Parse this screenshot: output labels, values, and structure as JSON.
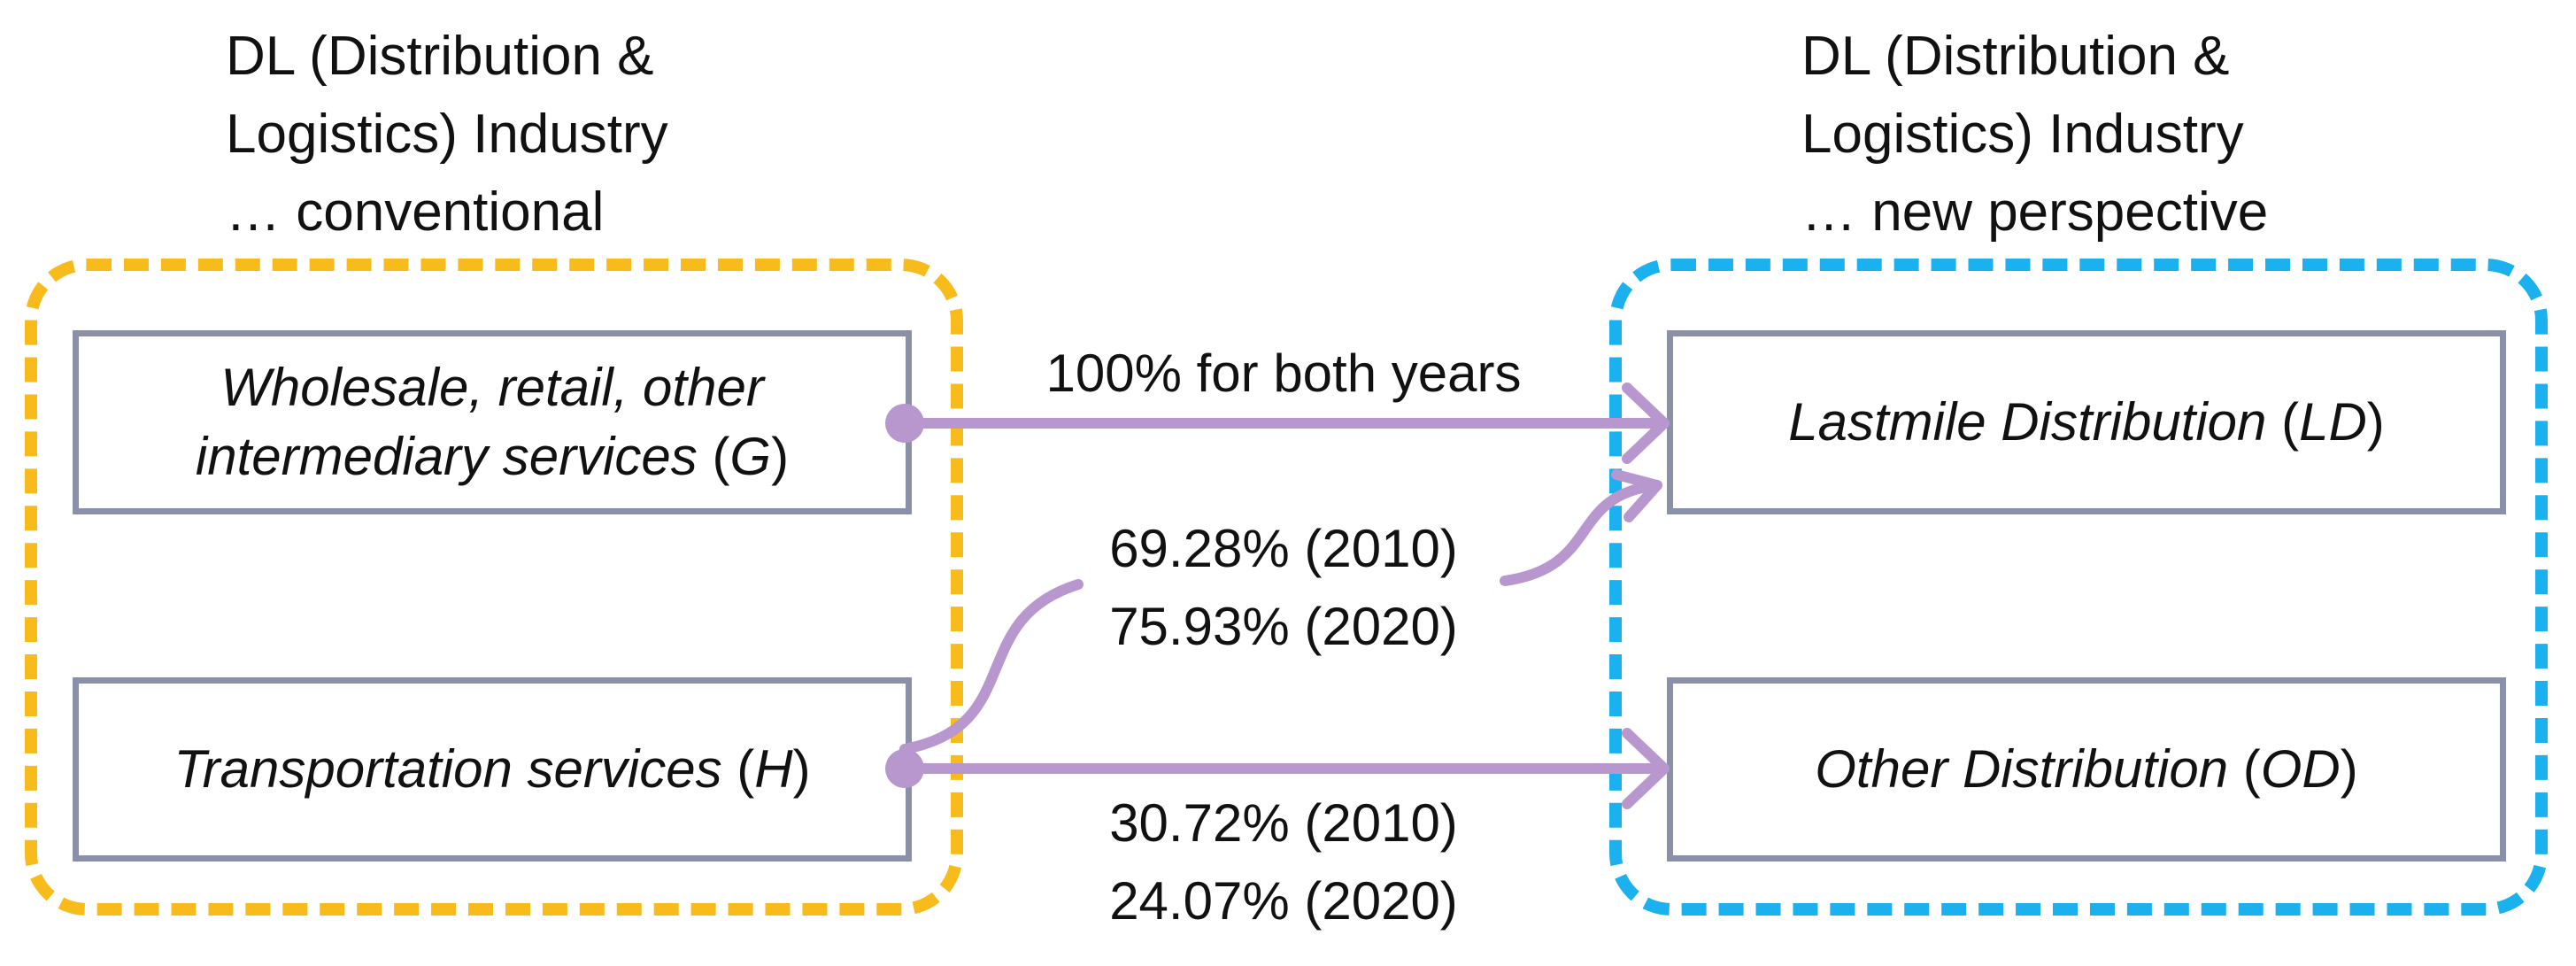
{
  "colors": {
    "conventional_border": "#f7bb1c",
    "new_border": "#1bb0ee",
    "box_border": "#8a90a8",
    "arrow": "#b897cf"
  },
  "left_group": {
    "heading_lines": [
      "DL (Distribution &",
      "Logistics) Industry",
      "… conventional"
    ],
    "nodes": {
      "g": {
        "name_line1": "Wholesale, retail, other",
        "name_line2": "intermediary services",
        "code": "G"
      },
      "h": {
        "name": "Transportation services",
        "code": "H"
      }
    }
  },
  "right_group": {
    "heading_lines": [
      "DL (Distribution &",
      "Logistics) Industry",
      "… new perspective"
    ],
    "nodes": {
      "ld": {
        "name": "Lastmile Distribution",
        "code": "LD"
      },
      "od": {
        "name": "Other Distribution",
        "code": "OD"
      }
    }
  },
  "flows": {
    "g_to_ld": {
      "label": "100% for both years"
    },
    "h_to_ld": {
      "label_lines": [
        "69.28% (2010)",
        "75.93% (2020)"
      ]
    },
    "h_to_od": {
      "label_lines": [
        "30.72% (2010)",
        "24.07% (2020)"
      ]
    }
  }
}
